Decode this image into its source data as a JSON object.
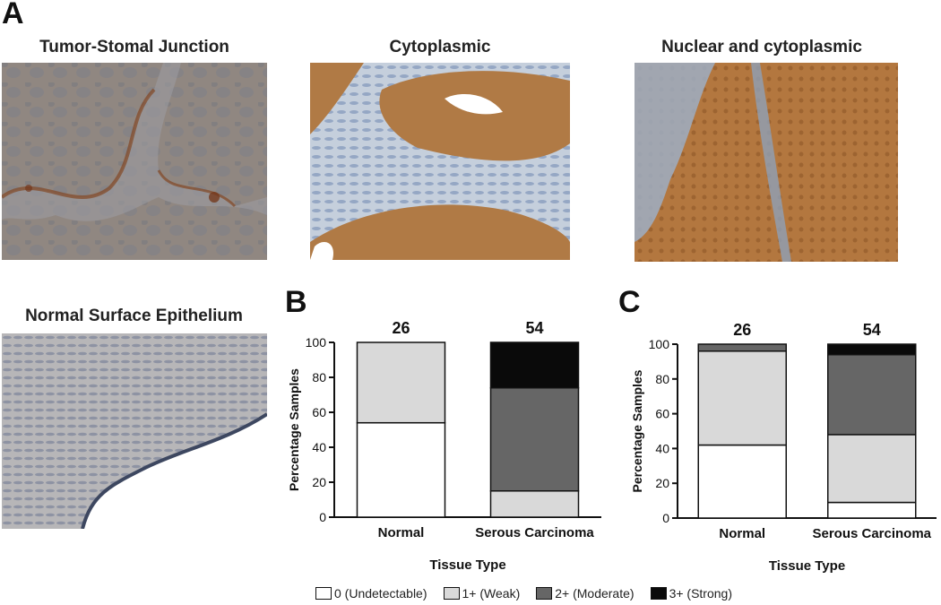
{
  "panel_a": {
    "letter": "A",
    "images": [
      {
        "title": "Tumor-Stomal Junction"
      },
      {
        "title": "Cytoplasmic"
      },
      {
        "title": "Nuclear and cytoplasmic"
      },
      {
        "title": "Normal Surface Epithelium"
      }
    ]
  },
  "legend": {
    "items": [
      {
        "label": "0 (Undetectable)",
        "color": "#ffffff"
      },
      {
        "label": "1+ (Weak)",
        "color": "#d9d9d9"
      },
      {
        "label": "2+ (Moderate)",
        "color": "#666666"
      },
      {
        "label": "3+ (Strong)",
        "color": "#0a0a0a"
      }
    ]
  },
  "chart_data": [
    {
      "panel": "B",
      "type": "bar",
      "stacked": true,
      "categories": [
        "Normal",
        "Serous Carcinoma"
      ],
      "counts": [
        "26",
        "54"
      ],
      "xlabel": "Tissue Type",
      "ylabel": "Percentage Samples",
      "ylim": [
        0,
        100
      ],
      "yticks": [
        0,
        20,
        40,
        60,
        80,
        100
      ],
      "series": [
        {
          "name": "0 (Undetectable)",
          "values": [
            54,
            0
          ]
        },
        {
          "name": "1+ (Weak)",
          "values": [
            46,
            15
          ]
        },
        {
          "name": "2+ (Moderate)",
          "values": [
            0,
            59
          ]
        },
        {
          "name": "3+ (Strong)",
          "values": [
            0,
            26
          ]
        }
      ]
    },
    {
      "panel": "C",
      "type": "bar",
      "stacked": true,
      "categories": [
        "Normal",
        "Serous Carcinoma"
      ],
      "counts": [
        "26",
        "54"
      ],
      "xlabel": "Tissue Type",
      "ylabel": "Percentage Samples",
      "ylim": [
        0,
        100
      ],
      "yticks": [
        0,
        20,
        40,
        60,
        80,
        100
      ],
      "series": [
        {
          "name": "0 (Undetectable)",
          "values": [
            42,
            9
          ]
        },
        {
          "name": "1+ (Weak)",
          "values": [
            54,
            39
          ]
        },
        {
          "name": "2+ (Moderate)",
          "values": [
            4,
            46
          ]
        },
        {
          "name": "3+ (Strong)",
          "values": [
            0,
            6
          ]
        }
      ]
    }
  ]
}
